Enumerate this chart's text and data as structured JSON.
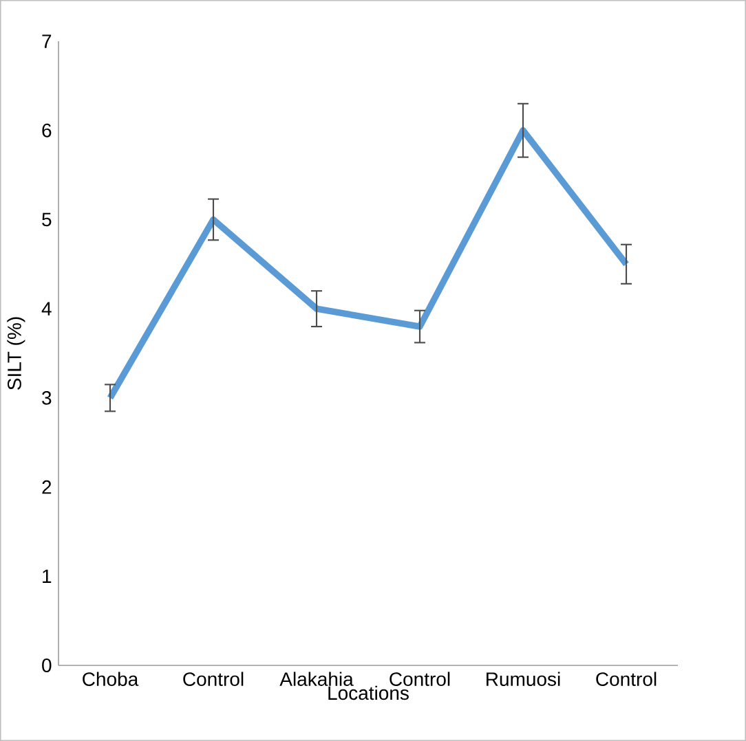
{
  "chart_data": {
    "type": "line",
    "xlabel": "Locations",
    "ylabel": "SILT (%)",
    "categories": [
      "Choba",
      "Control",
      "Alakahia",
      "Control",
      "Rumuosi",
      "Control"
    ],
    "series": [
      {
        "color": "#5b9bd5",
        "values": [
          3,
          5,
          4,
          3.8,
          6,
          4.5
        ],
        "errors": [
          0.15,
          0.23,
          0.2,
          0.18,
          0.3,
          0.22
        ]
      }
    ],
    "ylim": [
      0,
      7
    ],
    "yticks": [
      0,
      1,
      2,
      3,
      4,
      5,
      6,
      7
    ],
    "grid": false,
    "marker": "none",
    "line_style": "solid"
  }
}
